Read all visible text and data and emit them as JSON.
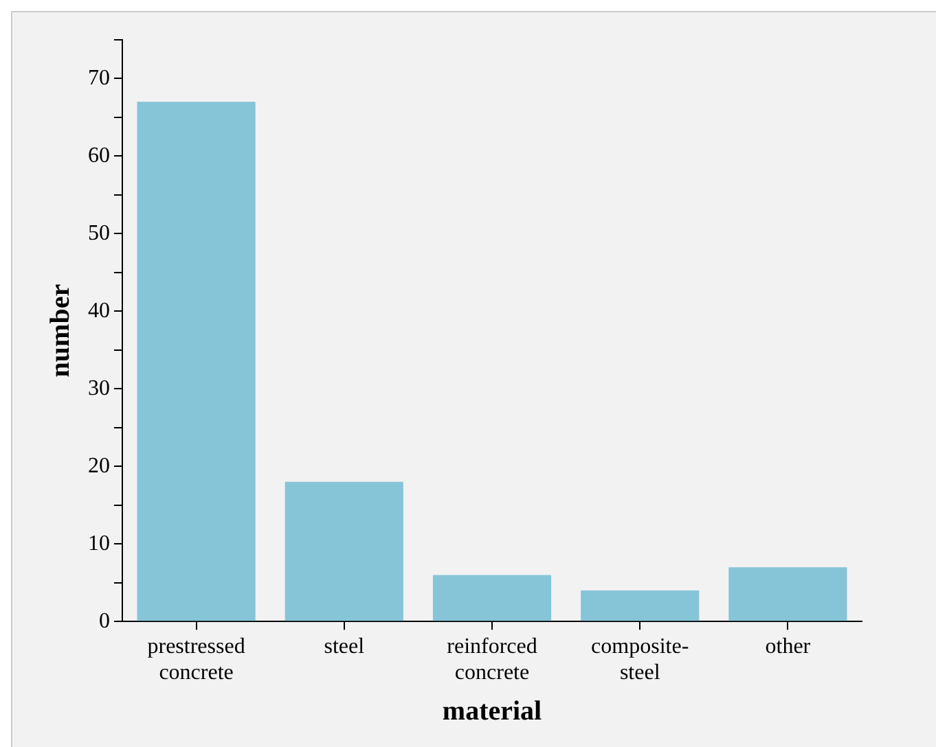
{
  "chart_data": {
    "type": "bar",
    "xlabel": "material",
    "ylabel": "number",
    "categories": [
      "prestressed concrete",
      "steel",
      "reinforced concrete",
      "composite-steel",
      "other"
    ],
    "values": [
      67,
      18,
      6,
      4,
      7
    ],
    "color": "#86c4d8",
    "ylim": [
      0,
      75
    ],
    "yticks": [
      0,
      {
        "value": 5,
        "label": null
      },
      10,
      {
        "value": 15,
        "label": null
      },
      20,
      {
        "value": 25,
        "label": null
      },
      30,
      {
        "value": 35,
        "label": null
      },
      40,
      {
        "value": 45,
        "label": null
      },
      50,
      {
        "value": 55,
        "label": null
      },
      60,
      {
        "value": 65,
        "label": null
      },
      70,
      {
        "value": 75,
        "label": null
      }
    ],
    "grid": false,
    "legend": false
  }
}
